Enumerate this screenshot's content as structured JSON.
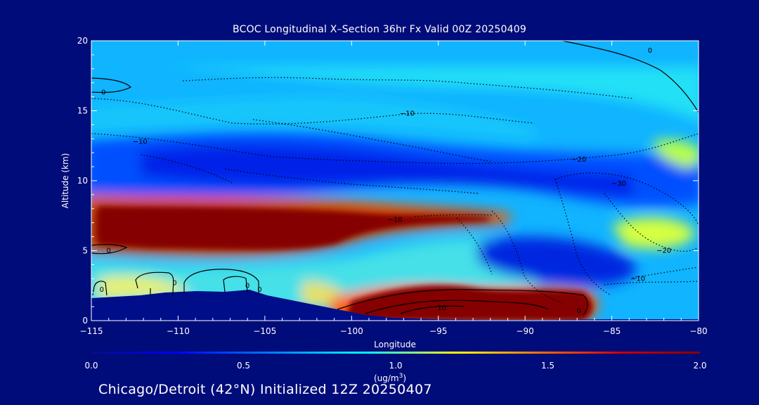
{
  "chart_data": {
    "type": "heatmap",
    "title": "BCOC Longitudinal X–Section 36hr  Fx Valid 00Z 20250409",
    "xlabel": "Longitude",
    "ylabel": "Altitude (km)",
    "xlim": [
      -115,
      -80
    ],
    "ylim": [
      0,
      20
    ],
    "x_ticks": [
      -115,
      -110,
      -105,
      -100,
      -95,
      -90,
      -85,
      -80
    ],
    "x_tick_labels": [
      "−115",
      "−110",
      "−105",
      "−100",
      "−95",
      "−90",
      "−85",
      "−80"
    ],
    "y_ticks": [
      0,
      5,
      10,
      15,
      20
    ],
    "colorbar": {
      "min": 0.0,
      "max": 2.0,
      "ticks": [
        "0.0",
        "0.5",
        "1.0",
        "1.5",
        "2.0"
      ],
      "units_line1": "(ug/m",
      "units_sup": "3",
      "units_line2": ")"
    },
    "contour_labels": [
      {
        "text": "0",
        "lon": -114.3,
        "alt": 16.3
      },
      {
        "text": "0",
        "lon": -82.8,
        "alt": 19.3
      },
      {
        "text": "0",
        "lon": -114.0,
        "alt": 5.0
      },
      {
        "text": "0",
        "lon": -114.4,
        "alt": 2.2
      },
      {
        "text": "0",
        "lon": -110.2,
        "alt": 2.7
      },
      {
        "text": "0",
        "lon": -106.0,
        "alt": 2.5
      },
      {
        "text": "0",
        "lon": -105.3,
        "alt": 2.2
      },
      {
        "text": "0",
        "lon": -86.9,
        "alt": 0.7
      },
      {
        "text": "−10",
        "lon": -112.2,
        "alt": 12.8
      },
      {
        "text": "−10",
        "lon": -96.8,
        "alt": 14.8
      },
      {
        "text": "−10",
        "lon": -97.5,
        "alt": 7.2
      },
      {
        "text": "−10",
        "lon": -83.5,
        "alt": 3.0
      },
      {
        "text": "−20",
        "lon": -86.9,
        "alt": 11.5
      },
      {
        "text": "−20",
        "lon": -82.0,
        "alt": 5.0
      },
      {
        "text": "−30",
        "lon": -84.6,
        "alt": 9.8
      },
      {
        "text": "10",
        "lon": -94.8,
        "alt": 0.9
      }
    ]
  },
  "footer": "Chicago/Detroit (42°N) Initialized 12Z 20250407",
  "colors": {
    "background": "#000c7a",
    "terrain": "#000e8a",
    "scale": [
      "#0a0a87",
      "#0000ff",
      "#0090ff",
      "#00ffff",
      "#ffff00",
      "#ff6000",
      "#cc0000",
      "#850000"
    ]
  }
}
